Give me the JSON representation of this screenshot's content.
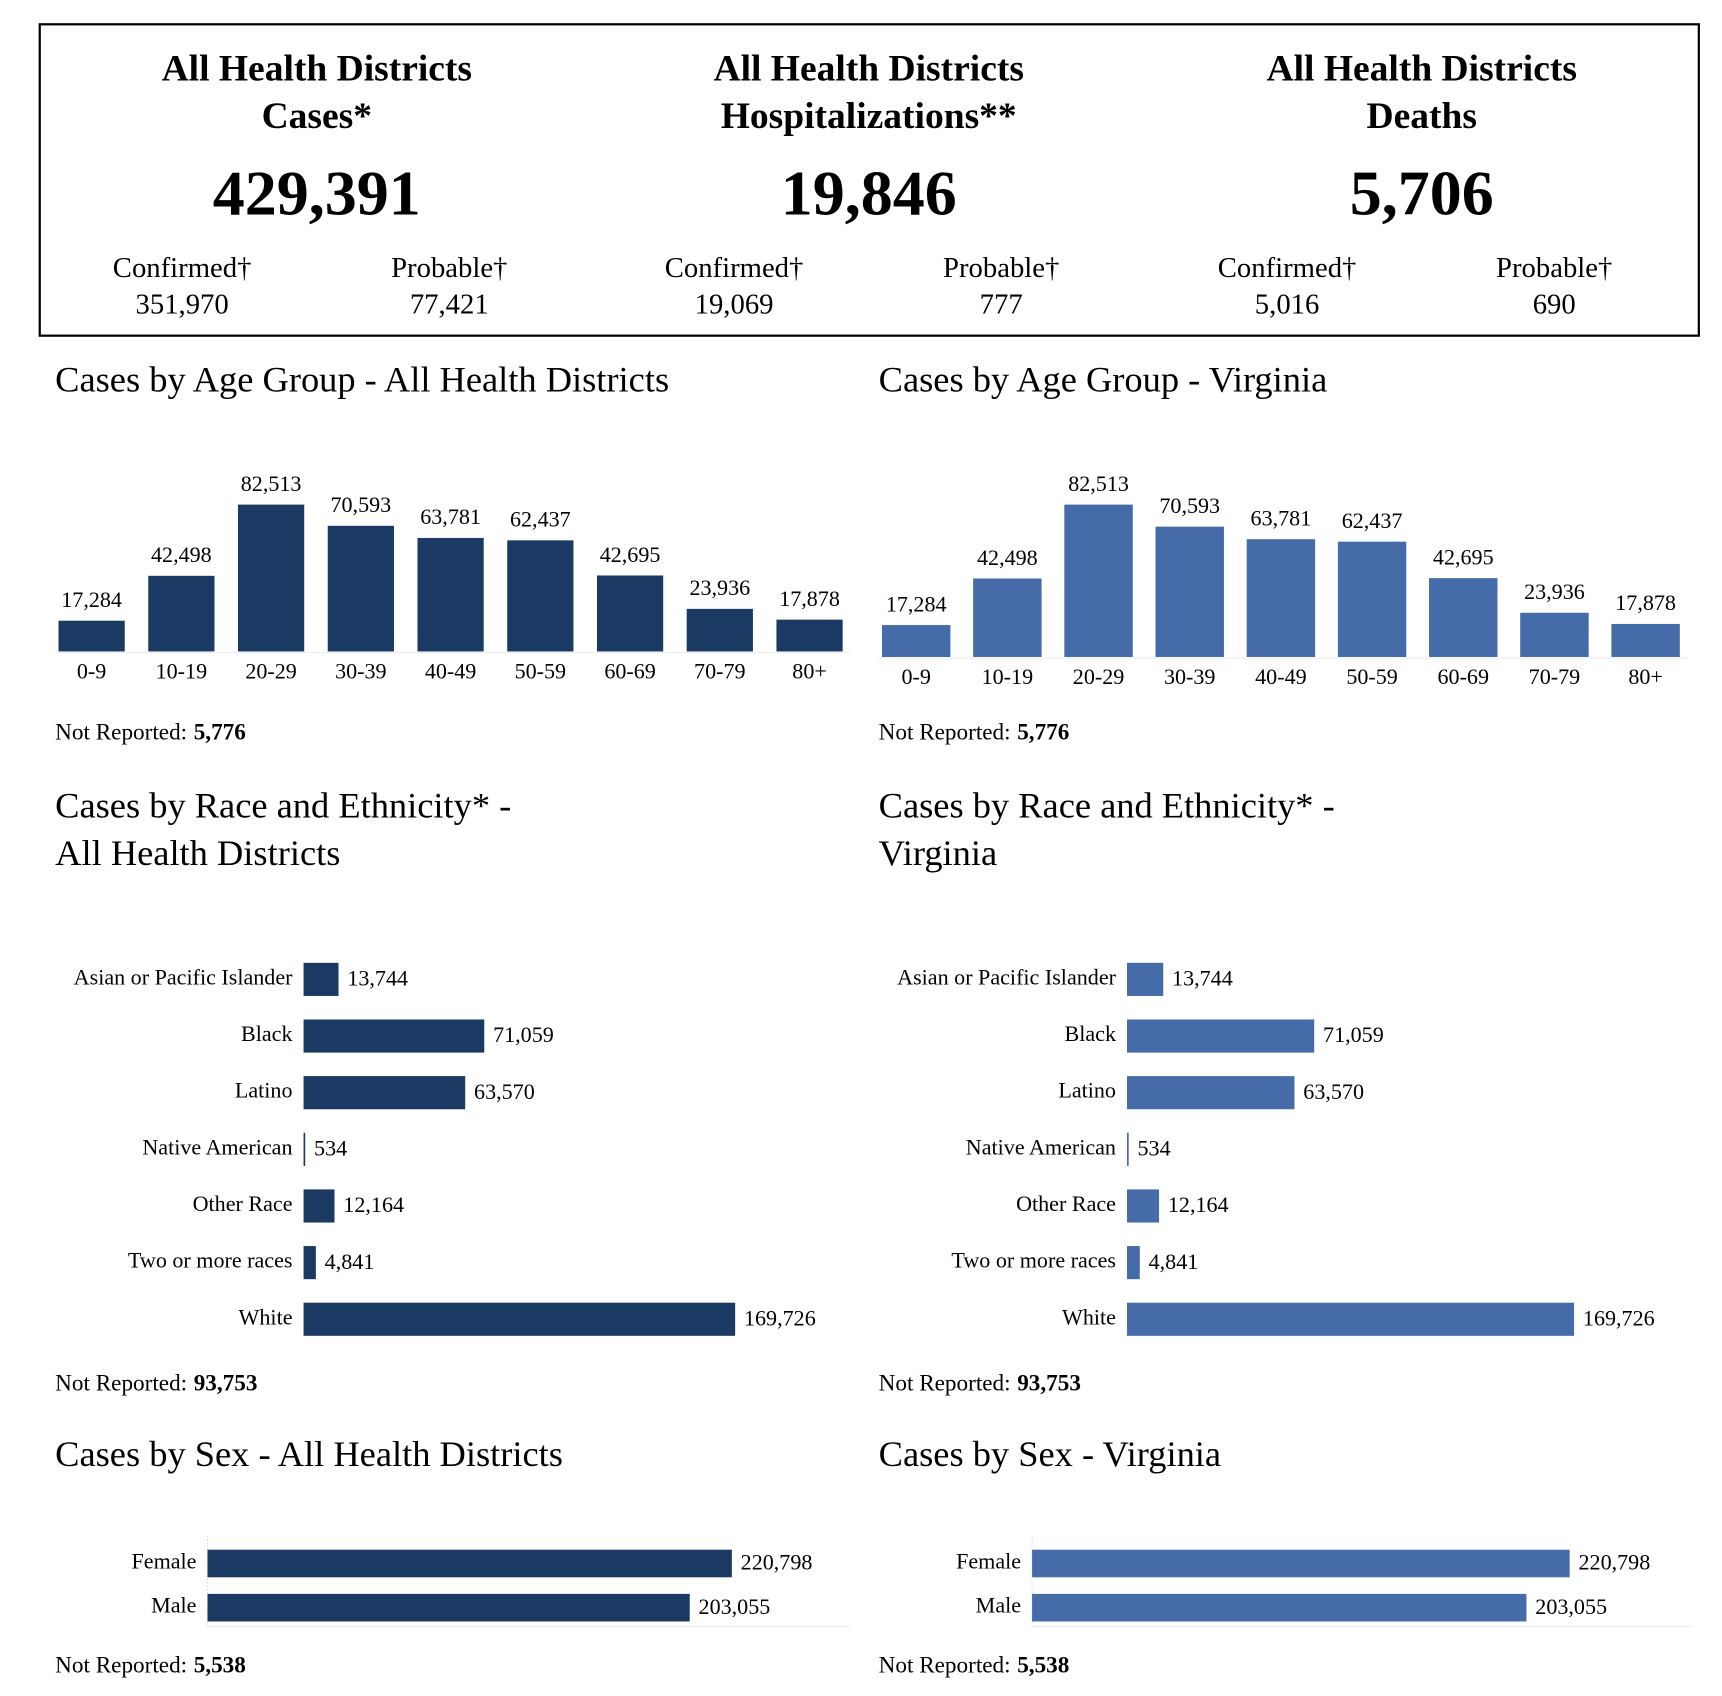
{
  "summary": [
    {
      "title": [
        "All Health Districts",
        "Cases*"
      ],
      "total": "429,391",
      "confirmed_label": "Confirmed†",
      "confirmed": "351,970",
      "probable_label": "Probable†",
      "probable": "77,421"
    },
    {
      "title": [
        "All Health Districts",
        "Hospitalizations**"
      ],
      "total": "19,846",
      "confirmed_label": "Confirmed†",
      "confirmed": "19,069",
      "probable_label": "Probable†",
      "probable": "777"
    },
    {
      "title": [
        "All Health Districts",
        "Deaths"
      ],
      "total": "5,706",
      "confirmed_label": "Confirmed†",
      "confirmed": "5,016",
      "probable_label": "Probable†",
      "probable": "690"
    }
  ],
  "chart_data": [
    {
      "type": "bar",
      "title": [
        "Cases by Age Group - All Health Districts"
      ],
      "color": "#1a3a63",
      "categories": [
        "0-9",
        "10-19",
        "20-29",
        "30-39",
        "40-49",
        "50-59",
        "60-69",
        "70-79",
        "80+"
      ],
      "values": [
        17284,
        42498,
        82513,
        70593,
        63781,
        62437,
        42695,
        23936,
        17878
      ],
      "value_labels": [
        "17,284",
        "42,498",
        "82,513",
        "70,593",
        "63,781",
        "62,437",
        "42,695",
        "23,936",
        "17,878"
      ],
      "note_label": "Not Reported:",
      "note_value": "5,776"
    },
    {
      "type": "bar",
      "title": [
        "Cases by Age Group - Virginia"
      ],
      "color": "#456ba9",
      "categories": [
        "0-9",
        "10-19",
        "20-29",
        "30-39",
        "40-49",
        "50-59",
        "60-69",
        "70-79",
        "80+"
      ],
      "values": [
        17284,
        42498,
        82513,
        70593,
        63781,
        62437,
        42695,
        23936,
        17878
      ],
      "value_labels": [
        "17,284",
        "42,498",
        "82,513",
        "70,593",
        "63,781",
        "62,437",
        "42,695",
        "23,936",
        "17,878"
      ],
      "note_label": "Not Reported:",
      "note_value": "5,776"
    },
    {
      "type": "hbar",
      "title": [
        "Cases by Race and Ethnicity* -",
        "All Health Districts"
      ],
      "color": "#1a3a63",
      "categories": [
        "Asian or Pacific Islander",
        "Black",
        "Latino",
        "Native American",
        "Other Race",
        "Two or more races",
        "White"
      ],
      "values": [
        13744,
        71059,
        63570,
        534,
        12164,
        4841,
        169726
      ],
      "value_labels": [
        "13,744",
        "71,059",
        "63,570",
        "534",
        "12,164",
        "4,841",
        "169,726"
      ],
      "note_label": "Not Reported:",
      "note_value": "93,753"
    },
    {
      "type": "hbar",
      "title": [
        "Cases by Race and Ethnicity* -",
        "Virginia"
      ],
      "color": "#456ba9",
      "categories": [
        "Asian or Pacific Islander",
        "Black",
        "Latino",
        "Native American",
        "Other Race",
        "Two or more races",
        "White"
      ],
      "values": [
        13744,
        71059,
        63570,
        534,
        12164,
        4841,
        169726
      ],
      "value_labels": [
        "13,744",
        "71,059",
        "63,570",
        "534",
        "12,164",
        "4,841",
        "169,726"
      ],
      "note_label": "Not Reported:",
      "note_value": "93,753"
    },
    {
      "type": "hbar",
      "title": [
        "Cases by Sex - All Health Districts"
      ],
      "color": "#1a3a63",
      "categories": [
        "Female",
        "Male"
      ],
      "values": [
        220798,
        203055
      ],
      "value_labels": [
        "220,798",
        "203,055"
      ],
      "note_label": "Not Reported:",
      "note_value": "5,538"
    },
    {
      "type": "hbar",
      "title": [
        "Cases by Sex - Virginia"
      ],
      "color": "#456ba9",
      "categories": [
        "Female",
        "Male"
      ],
      "values": [
        220798,
        203055
      ],
      "value_labels": [
        "220,798",
        "203,055"
      ],
      "note_label": "Not Reported:",
      "note_value": "5,538"
    }
  ]
}
